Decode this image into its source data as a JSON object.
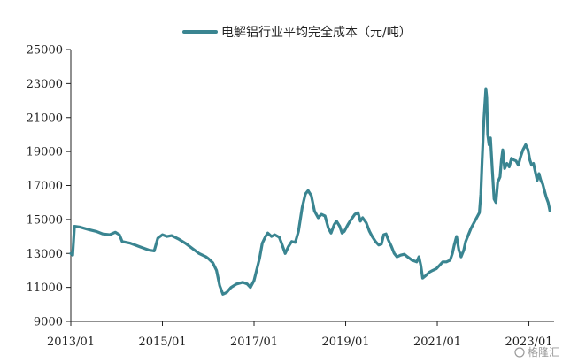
{
  "chart_data": {
    "type": "line",
    "title": "",
    "xlabel": "",
    "ylabel": "",
    "ylim": [
      9000,
      25000
    ],
    "yticks": [
      9000,
      11000,
      13000,
      15000,
      17000,
      19000,
      21000,
      23000,
      25000
    ],
    "xlim": [
      2013.0,
      2023.55
    ],
    "xticks": [
      {
        "x": 2013.0,
        "label": "2013/01"
      },
      {
        "x": 2015.0,
        "label": "2015/01"
      },
      {
        "x": 2017.0,
        "label": "2017/01"
      },
      {
        "x": 2019.0,
        "label": "2019/01"
      },
      {
        "x": 2021.0,
        "label": "2021/01"
      },
      {
        "x": 2023.0,
        "label": "2023/01"
      }
    ],
    "grid": false,
    "legend": "top-center",
    "series": [
      {
        "name": "电解铝行业平均完全成本（元/吨）",
        "color": "#3a8591",
        "points": [
          [
            2013.0,
            13000
          ],
          [
            2013.04,
            12900
          ],
          [
            2013.08,
            14600
          ],
          [
            2013.2,
            14550
          ],
          [
            2013.4,
            14400
          ],
          [
            2013.55,
            14300
          ],
          [
            2013.7,
            14150
          ],
          [
            2013.85,
            14100
          ],
          [
            2013.97,
            14250
          ],
          [
            2014.06,
            14100
          ],
          [
            2014.12,
            13700
          ],
          [
            2014.3,
            13600
          ],
          [
            2014.5,
            13400
          ],
          [
            2014.7,
            13200
          ],
          [
            2014.82,
            13150
          ],
          [
            2014.9,
            13900
          ],
          [
            2015.0,
            14100
          ],
          [
            2015.1,
            14000
          ],
          [
            2015.2,
            14050
          ],
          [
            2015.35,
            13850
          ],
          [
            2015.5,
            13600
          ],
          [
            2015.65,
            13300
          ],
          [
            2015.8,
            13000
          ],
          [
            2015.95,
            12800
          ],
          [
            2016.0,
            12700
          ],
          [
            2016.1,
            12450
          ],
          [
            2016.18,
            12000
          ],
          [
            2016.25,
            11100
          ],
          [
            2016.32,
            10600
          ],
          [
            2016.4,
            10700
          ],
          [
            2016.5,
            11000
          ],
          [
            2016.62,
            11200
          ],
          [
            2016.75,
            11300
          ],
          [
            2016.85,
            11200
          ],
          [
            2016.92,
            11000
          ],
          [
            2017.0,
            11400
          ],
          [
            2017.05,
            11950
          ],
          [
            2017.12,
            12700
          ],
          [
            2017.18,
            13600
          ],
          [
            2017.25,
            14000
          ],
          [
            2017.3,
            14200
          ],
          [
            2017.38,
            14000
          ],
          [
            2017.45,
            14100
          ],
          [
            2017.55,
            13950
          ],
          [
            2017.6,
            13600
          ],
          [
            2017.68,
            13000
          ],
          [
            2017.75,
            13400
          ],
          [
            2017.82,
            13700
          ],
          [
            2017.9,
            13650
          ],
          [
            2017.97,
            14300
          ],
          [
            2018.05,
            15700
          ],
          [
            2018.12,
            16500
          ],
          [
            2018.18,
            16700
          ],
          [
            2018.25,
            16400
          ],
          [
            2018.32,
            15500
          ],
          [
            2018.4,
            15100
          ],
          [
            2018.47,
            15300
          ],
          [
            2018.55,
            15200
          ],
          [
            2018.62,
            14500
          ],
          [
            2018.68,
            14200
          ],
          [
            2018.75,
            14700
          ],
          [
            2018.8,
            14900
          ],
          [
            2018.87,
            14600
          ],
          [
            2018.92,
            14200
          ],
          [
            2018.97,
            14300
          ],
          [
            2019.05,
            14700
          ],
          [
            2019.12,
            15000
          ],
          [
            2019.2,
            15300
          ],
          [
            2019.27,
            15400
          ],
          [
            2019.32,
            14900
          ],
          [
            2019.37,
            15100
          ],
          [
            2019.45,
            14800
          ],
          [
            2019.52,
            14300
          ],
          [
            2019.58,
            14000
          ],
          [
            2019.65,
            13700
          ],
          [
            2019.72,
            13500
          ],
          [
            2019.78,
            13550
          ],
          [
            2019.83,
            14100
          ],
          [
            2019.88,
            14150
          ],
          [
            2019.93,
            13800
          ],
          [
            2020.0,
            13400
          ],
          [
            2020.06,
            13000
          ],
          [
            2020.12,
            12800
          ],
          [
            2020.2,
            12900
          ],
          [
            2020.28,
            12950
          ],
          [
            2020.35,
            12800
          ],
          [
            2020.45,
            12600
          ],
          [
            2020.55,
            12500
          ],
          [
            2020.6,
            12800
          ],
          [
            2020.64,
            12300
          ],
          [
            2020.68,
            11550
          ],
          [
            2020.75,
            11700
          ],
          [
            2020.83,
            11900
          ],
          [
            2020.9,
            12000
          ],
          [
            2020.98,
            12100
          ],
          [
            2021.05,
            12300
          ],
          [
            2021.12,
            12500
          ],
          [
            2021.2,
            12500
          ],
          [
            2021.28,
            12600
          ],
          [
            2021.33,
            13000
          ],
          [
            2021.37,
            13500
          ],
          [
            2021.42,
            14000
          ],
          [
            2021.47,
            13200
          ],
          [
            2021.52,
            12800
          ],
          [
            2021.58,
            13200
          ],
          [
            2021.62,
            13700
          ],
          [
            2021.68,
            14100
          ],
          [
            2021.74,
            14500
          ],
          [
            2021.8,
            14800
          ],
          [
            2021.86,
            15100
          ],
          [
            2021.92,
            15400
          ],
          [
            2021.95,
            16500
          ],
          [
            2021.98,
            18500
          ],
          [
            2022.02,
            21000
          ],
          [
            2022.06,
            22700
          ],
          [
            2022.08,
            22200
          ],
          [
            2022.1,
            20000
          ],
          [
            2022.13,
            19400
          ],
          [
            2022.16,
            19800
          ],
          [
            2022.2,
            18000
          ],
          [
            2022.24,
            16200
          ],
          [
            2022.28,
            16000
          ],
          [
            2022.32,
            17200
          ],
          [
            2022.37,
            17500
          ],
          [
            2022.4,
            18500
          ],
          [
            2022.43,
            19100
          ],
          [
            2022.47,
            18000
          ],
          [
            2022.52,
            18300
          ],
          [
            2022.57,
            18100
          ],
          [
            2022.62,
            18600
          ],
          [
            2022.67,
            18500
          ],
          [
            2022.72,
            18450
          ],
          [
            2022.77,
            18200
          ],
          [
            2022.82,
            18700
          ],
          [
            2022.87,
            19100
          ],
          [
            2022.93,
            19400
          ],
          [
            2022.98,
            19100
          ],
          [
            2023.02,
            18500
          ],
          [
            2023.06,
            18200
          ],
          [
            2023.1,
            18300
          ],
          [
            2023.14,
            17800
          ],
          [
            2023.18,
            17300
          ],
          [
            2023.22,
            17700
          ],
          [
            2023.26,
            17300
          ],
          [
            2023.3,
            17100
          ],
          [
            2023.34,
            16700
          ],
          [
            2023.38,
            16300
          ],
          [
            2023.42,
            16000
          ],
          [
            2023.46,
            15500
          ]
        ]
      }
    ]
  },
  "watermark": "格隆汇"
}
